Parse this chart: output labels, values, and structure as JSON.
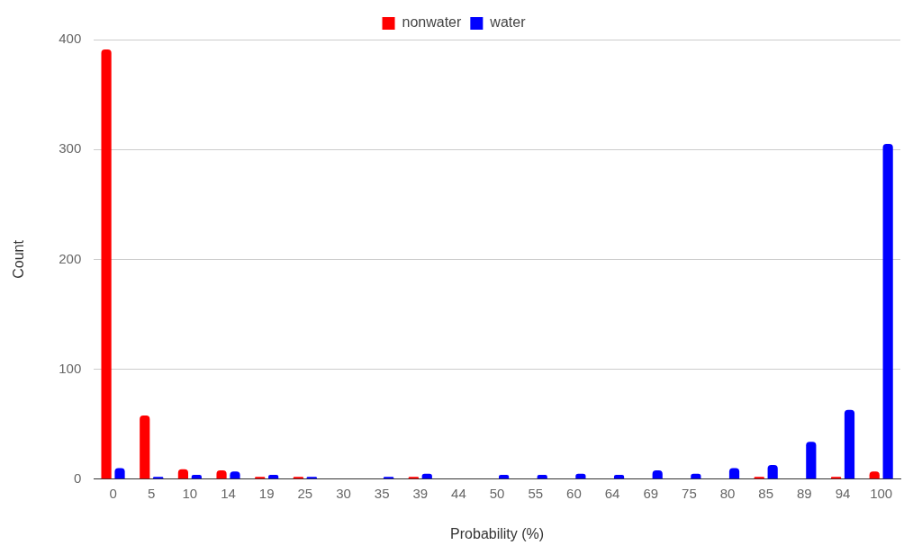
{
  "chart_data": {
    "type": "bar",
    "xlabel": "Probability (%)",
    "ylabel": "Count",
    "categories": [
      "0",
      "5",
      "10",
      "14",
      "19",
      "25",
      "30",
      "35",
      "39",
      "44",
      "50",
      "55",
      "60",
      "64",
      "69",
      "75",
      "80",
      "85",
      "89",
      "94",
      "100"
    ],
    "series": [
      {
        "name": "nonwater",
        "color": "#ff0000",
        "values": [
          391,
          58,
          9,
          8,
          2,
          2,
          0,
          0,
          2,
          0,
          0,
          0,
          0,
          0,
          0,
          0,
          0,
          2,
          0,
          2,
          7
        ]
      },
      {
        "name": "water",
        "color": "#0000ff",
        "values": [
          10,
          2,
          4,
          7,
          4,
          2,
          0,
          2,
          5,
          0,
          4,
          4,
          5,
          4,
          8,
          5,
          10,
          13,
          34,
          63,
          305
        ]
      }
    ],
    "ylim": [
      0,
      400
    ],
    "yticks": [
      0,
      100,
      200,
      300,
      400
    ],
    "grid": "y",
    "legend": "top"
  }
}
